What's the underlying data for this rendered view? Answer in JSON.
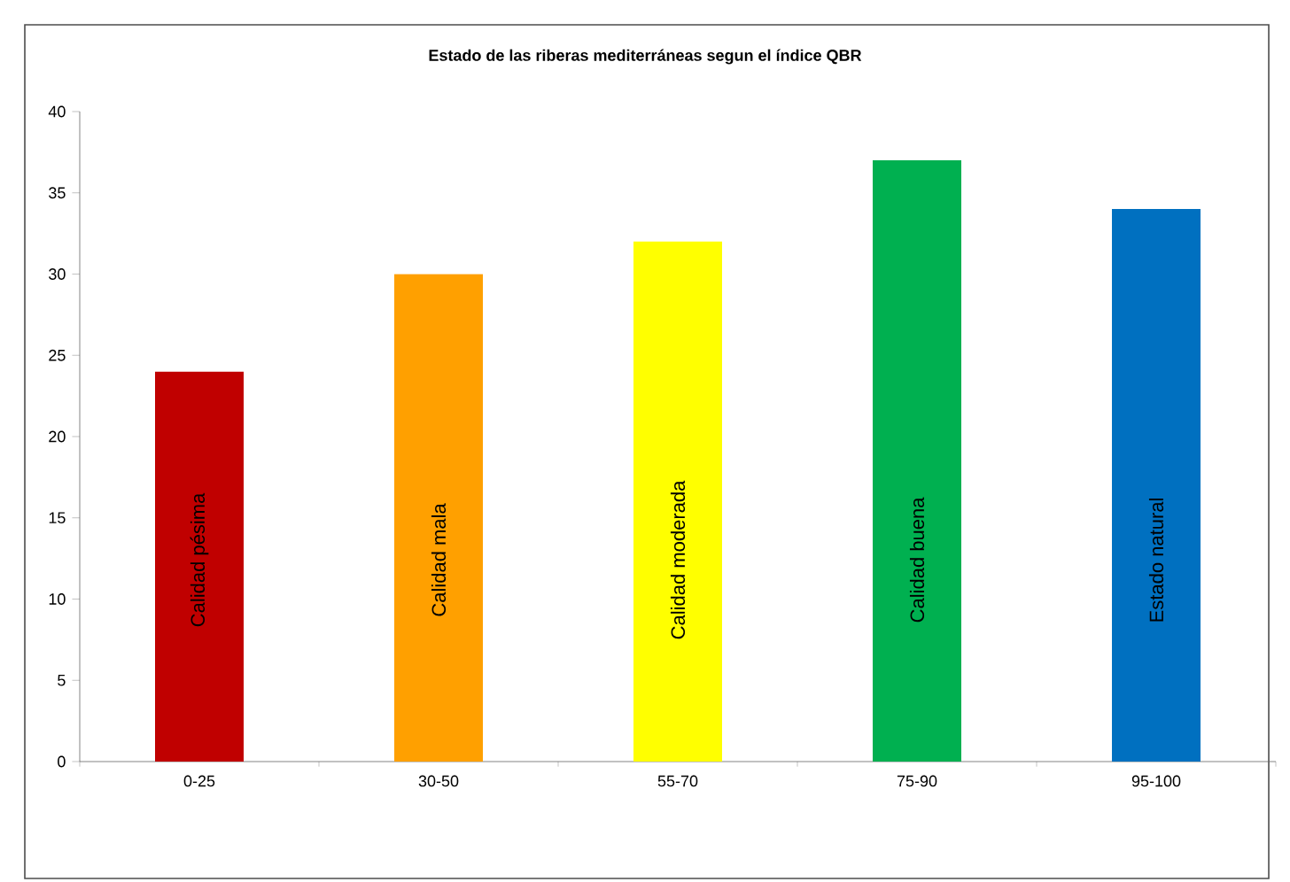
{
  "chart_data": {
    "type": "bar",
    "title": "Estado de las riberas mediterráneas segun el índice QBR",
    "categories": [
      "0-25",
      "30-50",
      "55-70",
      "75-90",
      "95-100"
    ],
    "values": [
      24,
      30,
      32,
      37,
      34
    ],
    "colors": [
      "#c00000",
      "#ffa000",
      "#ffff00",
      "#00b050",
      "#0070c0"
    ],
    "ylim": [
      0,
      40
    ],
    "yticks": [
      0,
      5,
      10,
      15,
      20,
      25,
      30,
      35,
      40
    ],
    "grid": false,
    "annotations": [
      "Calidad pésima",
      "Calidad mala",
      "Calidad moderada",
      "Calidad buena",
      "Estado natural"
    ]
  }
}
